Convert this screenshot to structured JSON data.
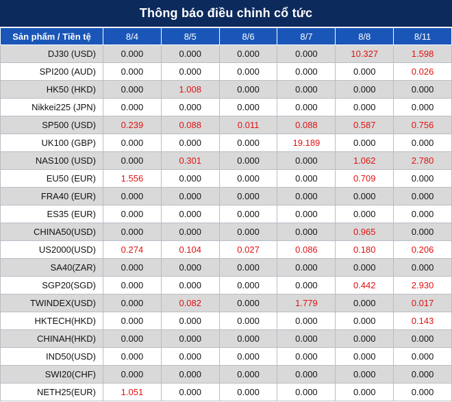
{
  "title": "Thông báo điều chỉnh cổ tức",
  "header": {
    "product_label": "Sản phẩm / Tiền tệ",
    "dates": [
      "8/4",
      "8/5",
      "8/6",
      "8/7",
      "8/8",
      "8/11"
    ]
  },
  "rows": [
    {
      "product": "DJ30 (USD)",
      "values": [
        "0.000",
        "0.000",
        "0.000",
        "0.000",
        "10.327",
        "1.598"
      ]
    },
    {
      "product": "SPI200 (AUD)",
      "values": [
        "0.000",
        "0.000",
        "0.000",
        "0.000",
        "0.000",
        "0.026"
      ]
    },
    {
      "product": "HK50 (HKD)",
      "values": [
        "0.000",
        "1.008",
        "0.000",
        "0.000",
        "0.000",
        "0.000"
      ]
    },
    {
      "product": "Nikkei225 (JPN)",
      "values": [
        "0.000",
        "0.000",
        "0.000",
        "0.000",
        "0.000",
        "0.000"
      ]
    },
    {
      "product": "SP500 (USD)",
      "values": [
        "0.239",
        "0.088",
        "0.011",
        "0.088",
        "0.587",
        "0.756"
      ]
    },
    {
      "product": "UK100 (GBP)",
      "values": [
        "0.000",
        "0.000",
        "0.000",
        "19.189",
        "0.000",
        "0.000"
      ]
    },
    {
      "product": "NAS100 (USD)",
      "values": [
        "0.000",
        "0.301",
        "0.000",
        "0.000",
        "1.062",
        "2.780"
      ]
    },
    {
      "product": "EU50 (EUR)",
      "values": [
        "1.556",
        "0.000",
        "0.000",
        "0.000",
        "0.709",
        "0.000"
      ]
    },
    {
      "product": "FRA40 (EUR)",
      "values": [
        "0.000",
        "0.000",
        "0.000",
        "0.000",
        "0.000",
        "0.000"
      ]
    },
    {
      "product": "ES35 (EUR)",
      "values": [
        "0.000",
        "0.000",
        "0.000",
        "0.000",
        "0.000",
        "0.000"
      ]
    },
    {
      "product": "CHINA50(USD)",
      "values": [
        "0.000",
        "0.000",
        "0.000",
        "0.000",
        "0.965",
        "0.000"
      ]
    },
    {
      "product": "US2000(USD)",
      "values": [
        "0.274",
        "0.104",
        "0.027",
        "0.086",
        "0.180",
        "0.206"
      ]
    },
    {
      "product": "SA40(ZAR)",
      "values": [
        "0.000",
        "0.000",
        "0.000",
        "0.000",
        "0.000",
        "0.000"
      ]
    },
    {
      "product": "SGP20(SGD)",
      "values": [
        "0.000",
        "0.000",
        "0.000",
        "0.000",
        "0.442",
        "2.930"
      ]
    },
    {
      "product": "TWINDEX(USD)",
      "values": [
        "0.000",
        "0.082",
        "0.000",
        "1.779",
        "0.000",
        "0.017"
      ]
    },
    {
      "product": "HKTECH(HKD)",
      "values": [
        "0.000",
        "0.000",
        "0.000",
        "0.000",
        "0.000",
        "0.143"
      ]
    },
    {
      "product": "CHINAH(HKD)",
      "values": [
        "0.000",
        "0.000",
        "0.000",
        "0.000",
        "0.000",
        "0.000"
      ]
    },
    {
      "product": "IND50(USD)",
      "values": [
        "0.000",
        "0.000",
        "0.000",
        "0.000",
        "0.000",
        "0.000"
      ]
    },
    {
      "product": "SWI20(CHF)",
      "values": [
        "0.000",
        "0.000",
        "0.000",
        "0.000",
        "0.000",
        "0.000"
      ]
    },
    {
      "product": "NETH25(EUR)",
      "values": [
        "1.051",
        "0.000",
        "0.000",
        "0.000",
        "0.000",
        "0.000"
      ]
    }
  ],
  "colors": {
    "title_bg": "#0d2a5c",
    "header_bg": "#1a56b8",
    "nonzero_text": "#e01010",
    "zero_text": "#111111",
    "stripe": "#d9d9d9"
  }
}
